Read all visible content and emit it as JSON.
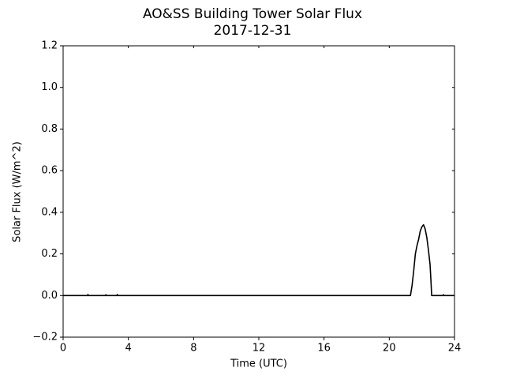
{
  "chart_data": {
    "type": "line",
    "title": "AO&SS Building Tower Solar Flux",
    "subtitle": "2017-12-31",
    "x_label": "Time (UTC)",
    "y_label": "Solar Flux (W/m^2)",
    "x": [
      0,
      1.5,
      1.52,
      1.55,
      2.6,
      2.62,
      2.65,
      3.3,
      3.32,
      3.35,
      21.3,
      21.4,
      21.5,
      21.6,
      21.7,
      21.8,
      21.9,
      22.0,
      22.1,
      22.2,
      22.3,
      22.4,
      22.5,
      22.55,
      22.6,
      23.3,
      23.32,
      23.35,
      24
    ],
    "series": [
      {
        "name": "Solar Flux",
        "color": "#000000",
        "values": [
          0,
          0,
          0.005,
          0,
          0,
          0.004,
          0,
          0,
          0.005,
          0,
          0,
          0.05,
          0.12,
          0.2,
          0.24,
          0.27,
          0.31,
          0.33,
          0.34,
          0.32,
          0.28,
          0.22,
          0.15,
          0.08,
          0,
          0,
          0.004,
          0,
          0
        ]
      }
    ],
    "xlim": [
      0,
      24
    ],
    "xticks": [
      0,
      4,
      8,
      12,
      16,
      20,
      24
    ],
    "ylim": [
      -0.2,
      1.2
    ],
    "yticks": [
      {
        "value": -0.2,
        "label": "−0.2"
      },
      {
        "value": 0,
        "label": "0.0"
      },
      0.2,
      0.4,
      0.6,
      0.8,
      {
        "value": 1,
        "label": "1.0"
      },
      1.2
    ],
    "grid": false
  }
}
